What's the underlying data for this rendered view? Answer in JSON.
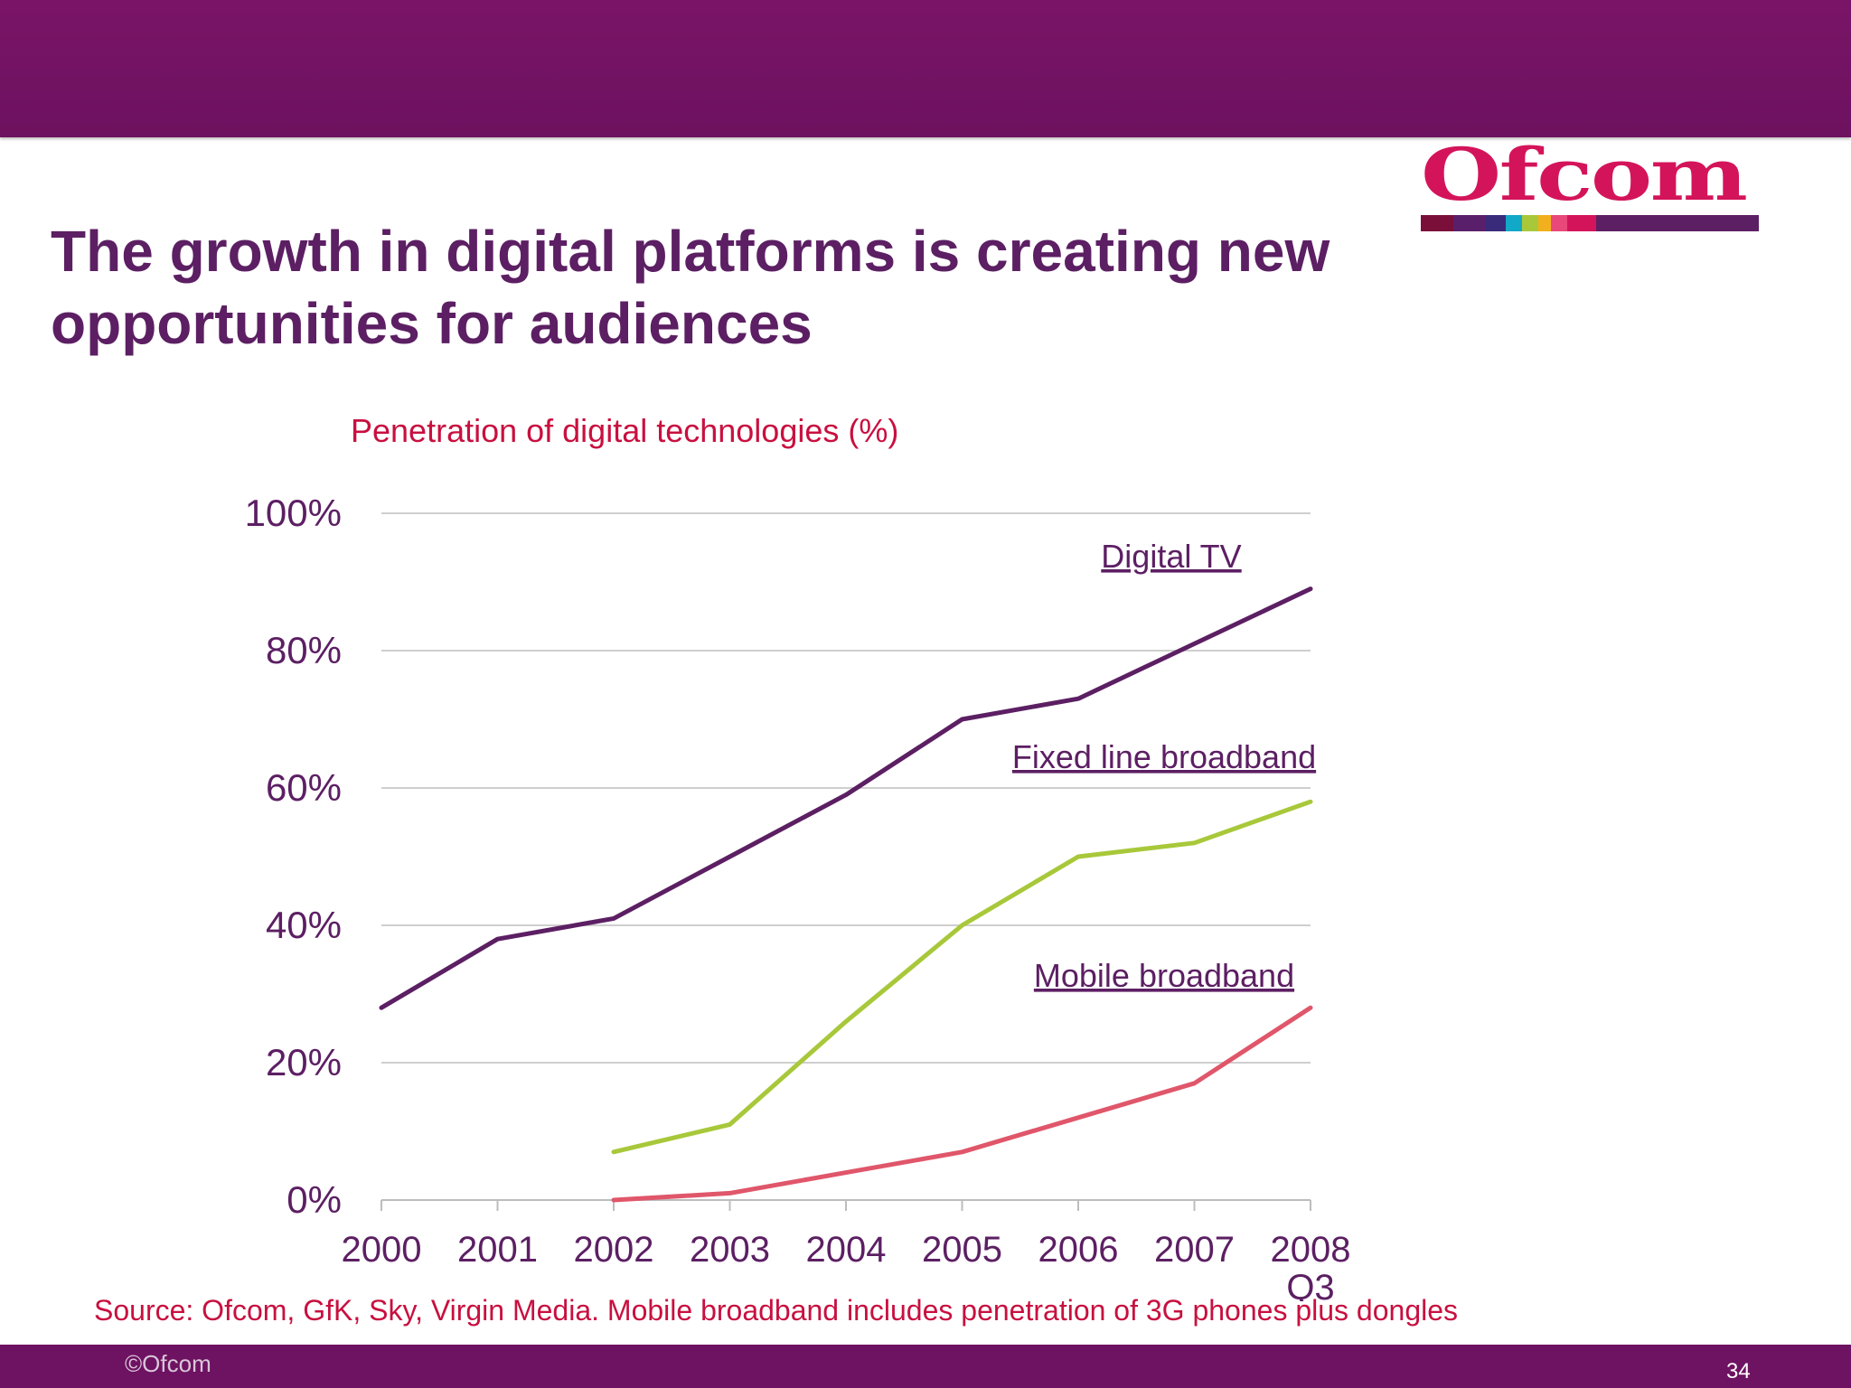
{
  "slide": {
    "title": "The growth in digital platforms is creating new opportunities for audiences",
    "chart_title": "Penetration of digital technologies (%)",
    "source": "Source: Ofcom, GfK, Sky, Virgin Media.  Mobile broadband includes penetration of 3G phones plus dongles",
    "copyright": "©Ofcom",
    "page_number": "34",
    "logo_text": "Ofcom",
    "colors": {
      "header_band": "#6e1262",
      "title": "#5c1f63",
      "accent_red": "#c8103f",
      "logo_red": "#d4145a"
    }
  },
  "chart_data": {
    "type": "line",
    "title": "Penetration of digital technologies (%)",
    "categories": [
      "2000",
      "2001",
      "2002",
      "2003",
      "2004",
      "2005",
      "2006",
      "2007",
      "2008 Q3"
    ],
    "ylim": [
      0,
      100
    ],
    "y_ticks": [
      "0%",
      "20%",
      "40%",
      "60%",
      "80%",
      "100%"
    ],
    "grid": true,
    "series": [
      {
        "name": "Digital TV",
        "color": "#5c1f63",
        "values": [
          28,
          38,
          41,
          50,
          59,
          70,
          73,
          81,
          89
        ]
      },
      {
        "name": "Fixed line broadband",
        "color": "#a8c83a",
        "values": [
          null,
          null,
          7,
          11,
          26,
          40,
          50,
          52,
          58
        ]
      },
      {
        "name": "Mobile broadband",
        "color": "#e0566a",
        "values": [
          null,
          null,
          0,
          1,
          4,
          7,
          12,
          17,
          28
        ]
      }
    ]
  }
}
